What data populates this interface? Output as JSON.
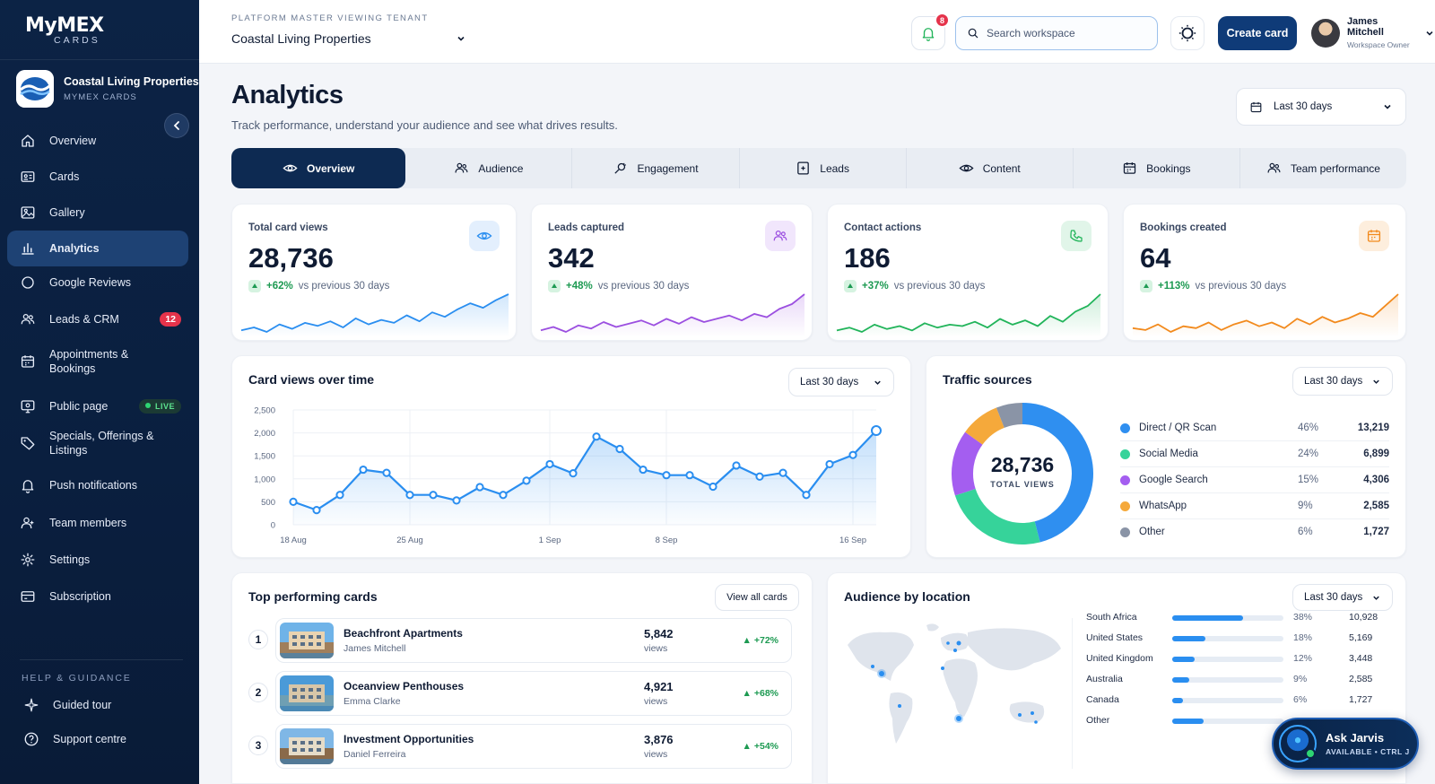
{
  "brand": {
    "name": "MyMEX",
    "sub": "CARDS"
  },
  "tenant": {
    "name": "Coastal Living Properties",
    "sub": "MYMEX CARDS"
  },
  "sidebar": {
    "items": [
      {
        "label": "Overview",
        "icon": "home-icon"
      },
      {
        "label": "Cards",
        "icon": "card-icon"
      },
      {
        "label": "Gallery",
        "icon": "image-icon"
      },
      {
        "label": "Analytics",
        "icon": "bar-chart-icon",
        "active": true
      },
      {
        "label": "Google Reviews",
        "icon": "google-icon"
      },
      {
        "label": "Leads & CRM",
        "icon": "users-icon",
        "badge": "12"
      },
      {
        "label": "Appointments &",
        "label2": "Bookings",
        "icon": "calendar-icon"
      },
      {
        "label": "Public page",
        "icon": "monitor-icon",
        "badge": "LIVE"
      },
      {
        "label": "Specials, Offerings &",
        "label2": "Listings",
        "icon": "tag-icon"
      },
      {
        "label": "Push notifications",
        "icon": "bell-icon"
      },
      {
        "label": "Team members",
        "icon": "team-icon"
      },
      {
        "label": "Settings",
        "icon": "gear-icon"
      },
      {
        "label": "Subscription",
        "icon": "subscription-icon"
      }
    ],
    "help_title": "HELP & GUIDANCE",
    "help_items": [
      {
        "label": "Guided tour",
        "icon": "sparkle-icon"
      },
      {
        "label": "Support centre",
        "icon": "help-icon"
      }
    ]
  },
  "header": {
    "tenant_label": "PLATFORM MASTER VIEWING TENANT",
    "tenant_value": "Coastal Living Properties",
    "notif_count": "8",
    "search_placeholder": "Search workspace",
    "create_label": "Create card",
    "user_name": "James Mitchell",
    "user_role": "Workspace Owner"
  },
  "page": {
    "title": "Analytics",
    "subtitle": "Track performance, understand your audience and see what drives results.",
    "range": "Last 30 days"
  },
  "tabs": [
    "Overview",
    "Audience",
    "Engagement",
    "Leads",
    "Content",
    "Bookings",
    "Team performance"
  ],
  "kpis": [
    {
      "label": "Total card views",
      "value": "28,736",
      "change": "+62%",
      "vs": "vs previous 30 days",
      "color": "#2a8ef0",
      "icon": "eye-icon",
      "spark": [
        10,
        12,
        9,
        14,
        11,
        15,
        13,
        16,
        12,
        18,
        14,
        17,
        15,
        20,
        16,
        22,
        19,
        24,
        28,
        25,
        30,
        34
      ]
    },
    {
      "label": "Leads captured",
      "value": "342",
      "change": "+48%",
      "vs": "vs previous 30 days",
      "color": "#9b4fe0",
      "icon": "users-icon",
      "spark": [
        8,
        10,
        7,
        11,
        9,
        13,
        10,
        12,
        14,
        11,
        15,
        12,
        16,
        13,
        15,
        17,
        14,
        18,
        16,
        21,
        24,
        30
      ]
    },
    {
      "label": "Contact actions",
      "value": "186",
      "change": "+37%",
      "vs": "vs previous 30 days",
      "color": "#21b45a",
      "icon": "phone-icon",
      "spark": [
        9,
        11,
        8,
        13,
        10,
        12,
        9,
        14,
        11,
        13,
        12,
        15,
        11,
        17,
        13,
        16,
        12,
        19,
        15,
        22,
        26,
        34
      ]
    },
    {
      "label": "Bookings created",
      "value": "64",
      "change": "+113%",
      "vs": "vs previous 30 days",
      "color": "#f28a1d",
      "icon": "calendar-icon",
      "spark": [
        10,
        9,
        12,
        8,
        11,
        10,
        13,
        9,
        12,
        14,
        11,
        13,
        10,
        15,
        12,
        16,
        13,
        15,
        18,
        16,
        22,
        28
      ]
    }
  ],
  "card_views": {
    "title": "Card views over time",
    "range": "Last 30 days",
    "chart_data": {
      "type": "area",
      "yticks": [
        "2,500",
        "2,000",
        "1,500",
        "1,000",
        "500",
        "0"
      ],
      "ylim": [
        0,
        2500
      ],
      "xticks": [
        {
          "label": "18 Aug",
          "i": 0
        },
        {
          "label": "25 Aug",
          "i": 5
        },
        {
          "label": "1 Sep",
          "i": 11
        },
        {
          "label": "8 Sep",
          "i": 16
        },
        {
          "label": "16 Sep",
          "i": 24
        }
      ],
      "values": [
        500,
        320,
        650,
        1200,
        1130,
        650,
        650,
        530,
        820,
        650,
        960,
        1320,
        1120,
        1920,
        1650,
        1200,
        1080,
        1080,
        830,
        1290,
        1050,
        1130,
        650,
        1320,
        1520,
        2050
      ]
    }
  },
  "traffic": {
    "title": "Traffic sources",
    "range": "Last 30 days",
    "total": "28,736",
    "total_label": "TOTAL VIEWS",
    "chart_data": {
      "type": "pie",
      "slices": [
        {
          "name": "Direct / QR Scan",
          "pct": "46%",
          "value": "13,219",
          "share": 46,
          "color": "#2f8ff0"
        },
        {
          "name": "Social Media",
          "pct": "24%",
          "value": "6,899",
          "share": 24,
          "color": "#36d39a"
        },
        {
          "name": "Google Search",
          "pct": "15%",
          "value": "4,306",
          "share": 15,
          "color": "#a45ef0"
        },
        {
          "name": "WhatsApp",
          "pct": "9%",
          "value": "2,585",
          "share": 9,
          "color": "#f5a93b"
        },
        {
          "name": "Other",
          "pct": "6%",
          "value": "1,727",
          "share": 6,
          "color": "#8a94a6"
        }
      ]
    }
  },
  "top_cards": {
    "title": "Top performing cards",
    "view_all": "View all cards",
    "rows": [
      {
        "rank": "1",
        "name": "Beachfront Apartments",
        "owner": "James Mitchell",
        "views": "5,842",
        "views_label": "views",
        "change": "+72%"
      },
      {
        "rank": "2",
        "name": "Oceanview Penthouses",
        "owner": "Emma Clarke",
        "views": "4,921",
        "views_label": "views",
        "change": "+68%"
      },
      {
        "rank": "3",
        "name": "Investment Opportunities",
        "owner": "Daniel Ferreira",
        "views": "3,876",
        "views_label": "views",
        "change": "+54%"
      }
    ]
  },
  "audience": {
    "title": "Audience by location",
    "range": "Last 30 days",
    "rows": [
      {
        "name": "South Africa",
        "pct": "38%",
        "value": "10,928",
        "share": 38
      },
      {
        "name": "United States",
        "pct": "18%",
        "value": "5,169",
        "share": 18
      },
      {
        "name": "United Kingdom",
        "pct": "12%",
        "value": "3,448",
        "share": 12
      },
      {
        "name": "Australia",
        "pct": "9%",
        "value": "2,585",
        "share": 9
      },
      {
        "name": "Canada",
        "pct": "6%",
        "value": "1,727",
        "share": 6
      },
      {
        "name": "Other",
        "pct": "",
        "value": "",
        "share": 17
      }
    ]
  },
  "jarvis": {
    "title": "Ask Jarvis",
    "sub": "AVAILABLE • CTRL J"
  }
}
